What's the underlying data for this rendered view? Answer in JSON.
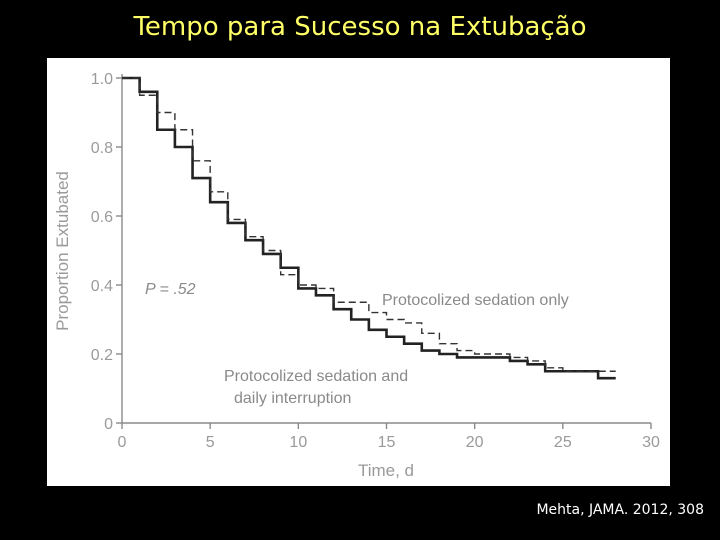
{
  "slide": {
    "title": "Tempo para Sucesso na Extubação",
    "citation": "Mehta, JAMA. 2012, 308"
  },
  "chart_data": {
    "type": "line",
    "step": true,
    "xlabel": "Time, d",
    "ylabel": "Proportion Extubated",
    "xlim": [
      0,
      30
    ],
    "ylim": [
      0,
      1.0
    ],
    "x_ticks": [
      0,
      5,
      10,
      15,
      20,
      25,
      30
    ],
    "x_tick_labels": [
      "0",
      "5",
      "10",
      "15",
      "20",
      "25",
      "30"
    ],
    "y_ticks": [
      0,
      0.2,
      0.4,
      0.6,
      0.8,
      1.0
    ],
    "y_tick_labels": [
      "0",
      "0.2",
      "0.4",
      "0.6",
      "0.8",
      "1.0"
    ],
    "grid": false,
    "annotation_p": "P = .52",
    "series": [
      {
        "name": "Protocolized sedation and daily interruption",
        "label_lines": [
          "Protocolized sedation and",
          "daily interruption"
        ],
        "style": "solid",
        "color": "#222222",
        "x": [
          0,
          1,
          2,
          3,
          4,
          5,
          6,
          7,
          8,
          9,
          10,
          11,
          12,
          13,
          14,
          15,
          16,
          17,
          18,
          19,
          20,
          21,
          22,
          23,
          24,
          25,
          26,
          27,
          28
        ],
        "y": [
          1.0,
          0.96,
          0.85,
          0.8,
          0.71,
          0.64,
          0.58,
          0.53,
          0.49,
          0.45,
          0.39,
          0.37,
          0.33,
          0.3,
          0.27,
          0.25,
          0.23,
          0.21,
          0.2,
          0.19,
          0.19,
          0.19,
          0.18,
          0.17,
          0.15,
          0.15,
          0.15,
          0.13,
          0.13
        ]
      },
      {
        "name": "Protocolized sedation only",
        "label_lines": [
          "Protocolized sedation only"
        ],
        "style": "dashed",
        "color": "#333333",
        "x": [
          0,
          1,
          2,
          3,
          4,
          5,
          6,
          7,
          8,
          9,
          10,
          11,
          12,
          13,
          14,
          15,
          16,
          17,
          18,
          19,
          20,
          21,
          22,
          23,
          24,
          25,
          26,
          27,
          28
        ],
        "y": [
          1.0,
          0.95,
          0.9,
          0.85,
          0.76,
          0.67,
          0.59,
          0.54,
          0.5,
          0.43,
          0.4,
          0.39,
          0.35,
          0.35,
          0.32,
          0.3,
          0.29,
          0.26,
          0.23,
          0.21,
          0.2,
          0.2,
          0.19,
          0.18,
          0.16,
          0.15,
          0.15,
          0.15,
          0.15
        ]
      }
    ]
  }
}
